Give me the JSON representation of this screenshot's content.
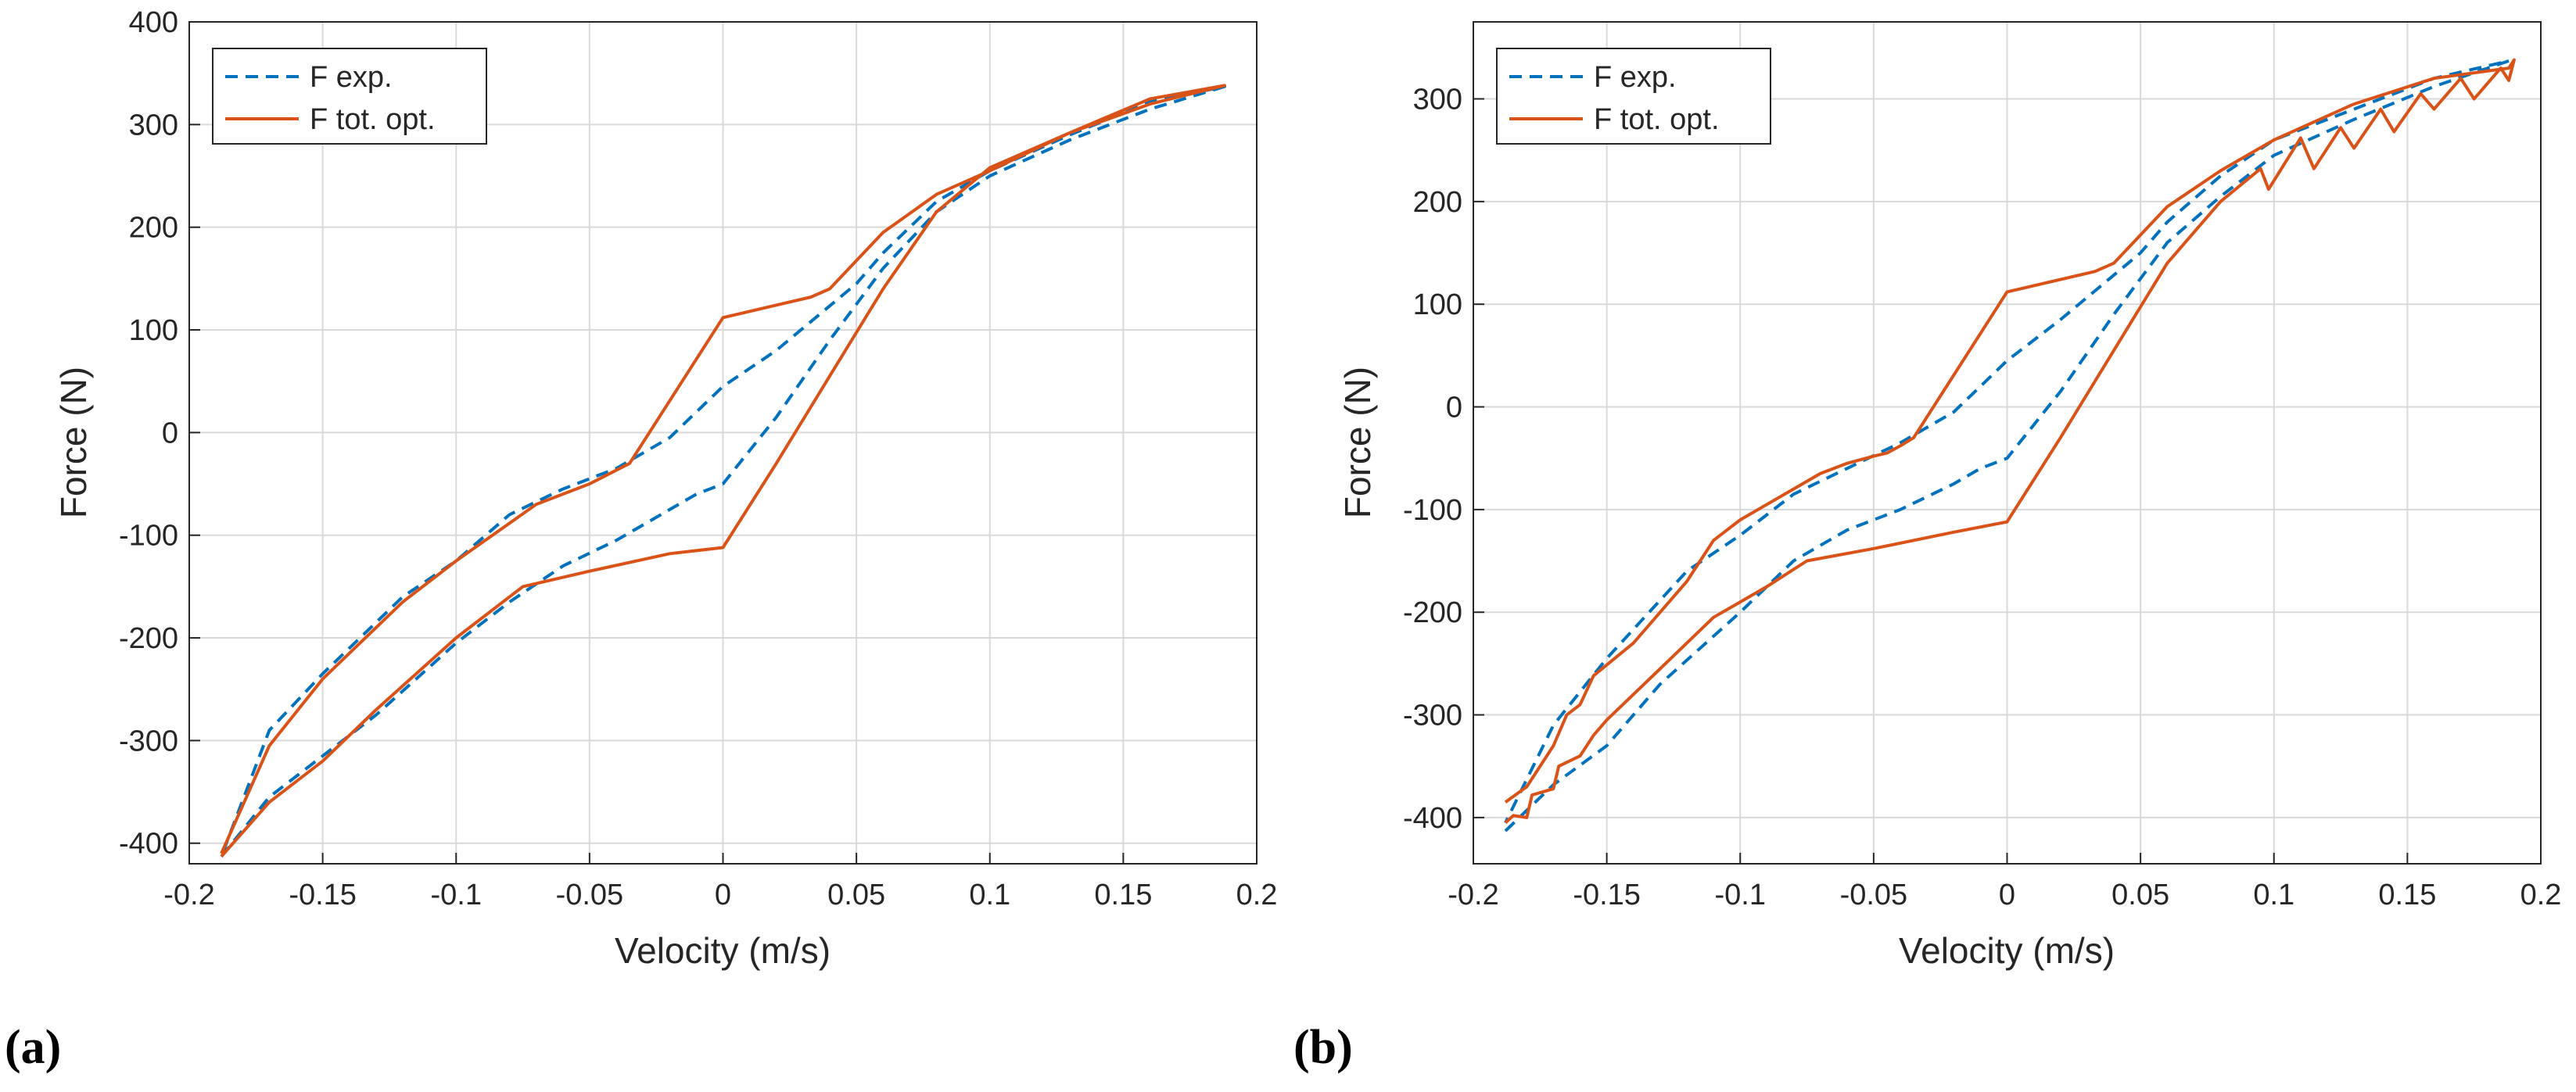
{
  "colors": {
    "exp": "#0072BD",
    "opt": "#D95319",
    "grid": "#d9d9d9",
    "axis": "#262626"
  },
  "chart_data": [
    {
      "panel_label": "(a)",
      "type": "line",
      "xlabel": "Velocity (m/s)",
      "ylabel": "Force (N)",
      "xlim": [
        -0.2,
        0.2
      ],
      "ylim": [
        -420,
        400
      ],
      "xticks": [
        -0.2,
        -0.15,
        -0.1,
        -0.05,
        0,
        0.05,
        0.1,
        0.15,
        0.2
      ],
      "xtick_labels": [
        "-0.2",
        "-0.15",
        "-0.1",
        "-0.05",
        "0",
        "0.05",
        "0.1",
        "0.15",
        "0.2"
      ],
      "yticks": [
        -400,
        -300,
        -200,
        -100,
        0,
        100,
        200,
        300,
        400
      ],
      "ytick_labels": [
        "-400",
        "-300",
        "-200",
        "-100",
        "0",
        "100",
        "200",
        "300",
        "400"
      ],
      "grid": true,
      "legend_position": "top-left",
      "series": [
        {
          "name": "F exp.",
          "style": "dashed",
          "x": [
            -0.188,
            -0.17,
            -0.15,
            -0.13,
            -0.1,
            -0.08,
            -0.06,
            -0.04,
            -0.02,
            -0.01,
            0,
            0.02,
            0.04,
            0.06,
            0.08,
            0.1,
            0.13,
            0.16,
            0.188,
            0.16,
            0.13,
            0.1,
            0.08,
            0.06,
            0.05,
            0.02,
            0,
            -0.02,
            -0.04,
            -0.06,
            -0.08,
            -0.1,
            -0.12,
            -0.15,
            -0.17,
            -0.188
          ],
          "y": [
            -413,
            -355,
            -315,
            -275,
            -205,
            -165,
            -130,
            -105,
            -75,
            -60,
            -50,
            15,
            90,
            160,
            215,
            250,
            285,
            315,
            337,
            322,
            290,
            255,
            225,
            175,
            145,
            80,
            45,
            -5,
            -35,
            -55,
            -80,
            -125,
            -160,
            -235,
            -290,
            -413
          ]
        },
        {
          "name": "F tot. opt.",
          "style": "solid",
          "x": [
            -0.188,
            -0.17,
            -0.15,
            -0.13,
            -0.1,
            -0.075,
            -0.05,
            -0.02,
            0,
            0.02,
            0.04,
            0.06,
            0.08,
            0.1,
            0.13,
            0.16,
            0.188,
            0.16,
            0.13,
            0.1,
            0.08,
            0.06,
            0.04,
            0.033,
            0,
            -0.035,
            -0.05,
            -0.07,
            -0.1,
            -0.12,
            -0.15,
            -0.17,
            -0.188
          ],
          "y": [
            -413,
            -360,
            -320,
            -270,
            -200,
            -150,
            -135,
            -118,
            -112,
            -30,
            55,
            140,
            215,
            258,
            292,
            320,
            338,
            325,
            292,
            255,
            232,
            195,
            140,
            132,
            112,
            -30,
            -50,
            -70,
            -125,
            -165,
            -240,
            -305,
            -410
          ]
        }
      ]
    },
    {
      "panel_label": "(b)",
      "type": "line",
      "xlabel": "Velocity (m/s)",
      "ylabel": "Force (N)",
      "xlim": [
        -0.2,
        0.2
      ],
      "ylim": [
        -445,
        375
      ],
      "xticks": [
        -0.2,
        -0.15,
        -0.1,
        -0.05,
        0,
        0.05,
        0.1,
        0.15,
        0.2
      ],
      "xtick_labels": [
        "-0.2",
        "-0.15",
        "-0.1",
        "-0.05",
        "0",
        "0.05",
        "0.1",
        "0.15",
        "0.2"
      ],
      "yticks": [
        -400,
        -300,
        -200,
        -100,
        0,
        100,
        200,
        300
      ],
      "ytick_labels": [
        "-400",
        "-300",
        "-200",
        "-100",
        "0",
        "100",
        "200",
        "300"
      ],
      "grid": true,
      "legend_position": "top-left",
      "series": [
        {
          "name": "F exp.",
          "style": "dashed",
          "x": [
            -0.188,
            -0.17,
            -0.15,
            -0.13,
            -0.1,
            -0.08,
            -0.06,
            -0.04,
            -0.02,
            -0.01,
            0,
            0.02,
            0.04,
            0.06,
            0.08,
            0.1,
            0.13,
            0.16,
            0.188,
            0.16,
            0.13,
            0.1,
            0.08,
            0.06,
            0.05,
            0.02,
            0,
            -0.02,
            -0.04,
            -0.06,
            -0.08,
            -0.1,
            -0.12,
            -0.15,
            -0.17,
            -0.188
          ],
          "y": [
            -413,
            -368,
            -330,
            -270,
            -200,
            -150,
            -120,
            -100,
            -75,
            -60,
            -50,
            15,
            90,
            160,
            205,
            245,
            280,
            312,
            337,
            320,
            290,
            260,
            225,
            180,
            150,
            85,
            45,
            -5,
            -35,
            -60,
            -85,
            -125,
            -160,
            -245,
            -310,
            -405
          ]
        },
        {
          "name": "F tot. opt.",
          "style": "solid",
          "x": [
            -0.188,
            -0.185,
            -0.18,
            -0.178,
            -0.17,
            -0.168,
            -0.16,
            -0.155,
            -0.15,
            -0.13,
            -0.11,
            -0.1,
            -0.09,
            -0.075,
            -0.05,
            -0.02,
            0,
            0.02,
            0.04,
            0.06,
            0.08,
            0.095,
            0.098,
            0.11,
            0.115,
            0.125,
            0.13,
            0.14,
            0.145,
            0.155,
            0.16,
            0.17,
            0.175,
            0.185,
            0.188,
            0.19,
            0.188,
            0.16,
            0.13,
            0.1,
            0.08,
            0.06,
            0.04,
            0.033,
            0,
            -0.035,
            -0.04,
            -0.045,
            -0.05,
            -0.06,
            -0.07,
            -0.08,
            -0.09,
            -0.1,
            -0.11,
            -0.115,
            -0.12,
            -0.14,
            -0.155,
            -0.16,
            -0.165,
            -0.17,
            -0.18,
            -0.188
          ],
          "y": [
            -405,
            -398,
            -400,
            -378,
            -372,
            -350,
            -340,
            -320,
            -305,
            -255,
            -205,
            -190,
            -175,
            -150,
            -138,
            -122,
            -112,
            -30,
            55,
            140,
            200,
            232,
            212,
            262,
            232,
            272,
            252,
            290,
            268,
            305,
            290,
            320,
            300,
            330,
            318,
            338,
            330,
            320,
            295,
            260,
            230,
            195,
            140,
            132,
            112,
            -30,
            -38,
            -45,
            -48,
            -55,
            -65,
            -80,
            -95,
            -110,
            -130,
            -150,
            -170,
            -230,
            -262,
            -290,
            -300,
            -330,
            -370,
            -385
          ]
        }
      ]
    }
  ],
  "legend": {
    "exp_label": "F exp.",
    "opt_label": "F tot. opt."
  }
}
